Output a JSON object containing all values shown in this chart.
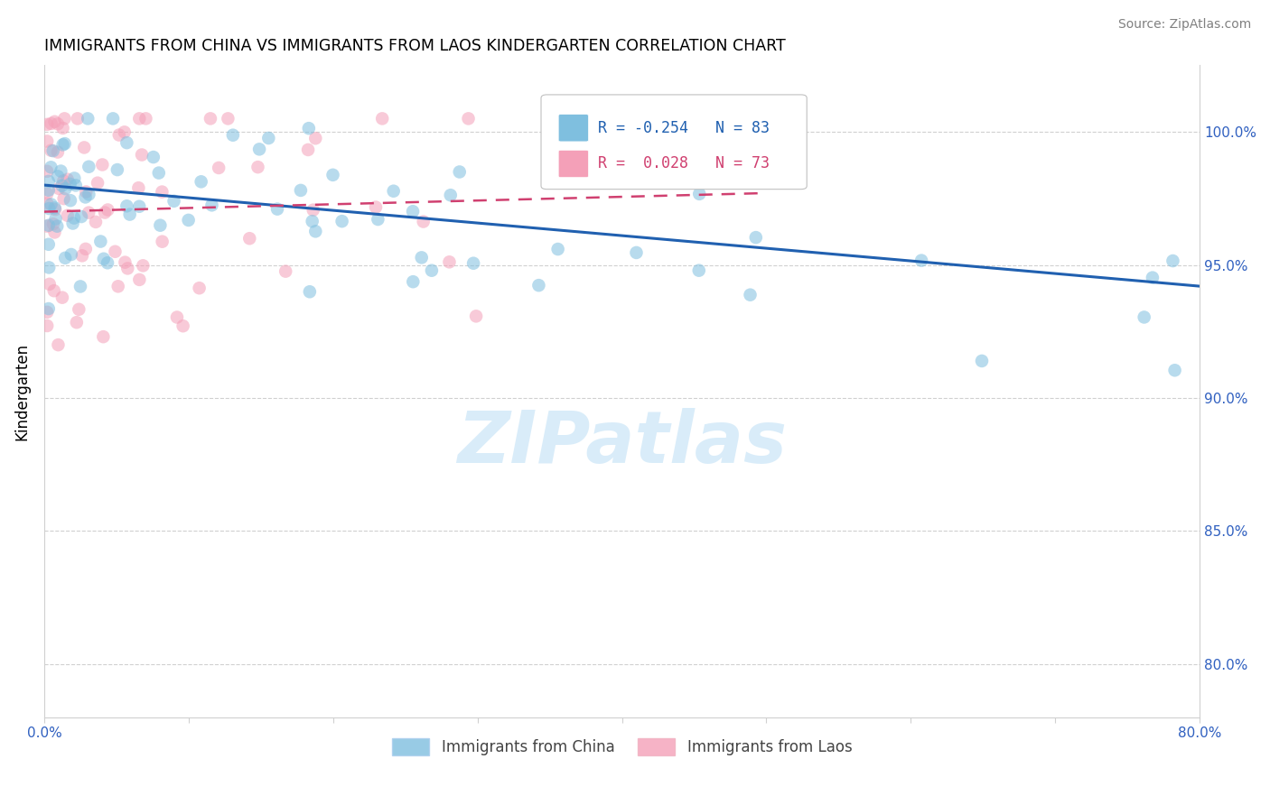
{
  "title": "IMMIGRANTS FROM CHINA VS IMMIGRANTS FROM LAOS KINDERGARTEN CORRELATION CHART",
  "source": "Source: ZipAtlas.com",
  "ylabel": "Kindergarten",
  "watermark": "ZIPatlas",
  "legend_china": "Immigrants from China",
  "legend_laos": "Immigrants from Laos",
  "R_china": -0.254,
  "N_china": 83,
  "R_laos": 0.028,
  "N_laos": 73,
  "color_china": "#7fbfdf",
  "color_laos": "#f4a0b8",
  "trendline_china_color": "#2060b0",
  "trendline_laos_color": "#d04070",
  "ytick_labels": [
    "100.0%",
    "95.0%",
    "90.0%",
    "85.0%",
    "80.0%"
  ],
  "ytick_values": [
    1.0,
    0.95,
    0.9,
    0.85,
    0.8
  ],
  "xlim": [
    0.0,
    0.8
  ],
  "ylim": [
    0.78,
    1.025
  ],
  "china_trendline_x": [
    0.0,
    0.8
  ],
  "china_trendline_y": [
    0.98,
    0.942
  ],
  "laos_trendline_x": [
    0.0,
    0.5
  ],
  "laos_trendline_y": [
    0.97,
    0.977
  ]
}
